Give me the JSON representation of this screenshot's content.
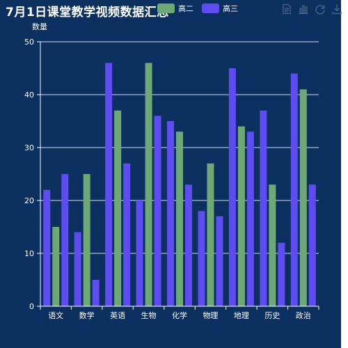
{
  "title": "7月1日课堂教学视频数据汇总",
  "legend": {
    "items": [
      {
        "name": "高二",
        "color": "#6ea876"
      },
      {
        "name": "高三",
        "color": "#5e4cf0"
      }
    ]
  },
  "toolbox": {
    "icons": [
      "data-view-icon",
      "bar-chart-icon",
      "refresh-icon",
      "download-icon"
    ]
  },
  "chart_data": {
    "type": "bar",
    "ylabel": "数量",
    "ylim": [
      0,
      50
    ],
    "yticks": [
      0,
      10,
      20,
      30,
      40,
      50
    ],
    "categories": [
      "语文",
      "数学",
      "英语",
      "生物",
      "化学",
      "物理",
      "地理",
      "历史",
      "政治"
    ],
    "series": [
      {
        "color": "#5e4cf0",
        "values": [
          22,
          14,
          46,
          20,
          35,
          18,
          45,
          37,
          44
        ]
      },
      {
        "name": "高二",
        "color": "#6ea876",
        "values": [
          15,
          25,
          37,
          46,
          33,
          27,
          34,
          23,
          41
        ]
      },
      {
        "name": "高三",
        "color": "#5e4cf0",
        "values": [
          25,
          5,
          27,
          36,
          23,
          17,
          33,
          12,
          23
        ]
      }
    ],
    "grid": true,
    "legend_position": "top-center"
  }
}
